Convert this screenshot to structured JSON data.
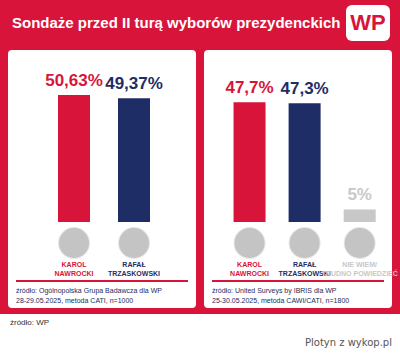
{
  "header": {
    "title": "Sondaże przed II turą wyborów prezydenckich",
    "logo": "WP"
  },
  "chart_data": [
    {
      "type": "bar",
      "categories": [
        "KAROL\nNAWROCKI",
        "RAFAŁ\nTRZASKOWSKI"
      ],
      "values": [
        50.63,
        49.37
      ],
      "value_labels": [
        "50,63%",
        "49,37%"
      ],
      "colors": [
        "#d8143a",
        "#1f2d66"
      ],
      "ylim": [
        0,
        55
      ],
      "grid": false,
      "data_labels": true,
      "tick_labels": "x",
      "source": [
        "źródło: Ogólnopolska Grupa Badawcza dla WP",
        "28-29.05.2025, metoda CATI, n=1000"
      ]
    },
    {
      "type": "bar",
      "categories": [
        "KAROL\nNAWROCKI",
        "RAFAŁ\nTRZASKOWSKI",
        "NIE WIEM/\nTRUDNO POWIEDZIEĆ"
      ],
      "values": [
        47.7,
        47.3,
        5
      ],
      "value_labels": [
        "47,7%",
        "47,3%",
        "5%"
      ],
      "colors": [
        "#d8143a",
        "#1f2d66",
        "#c8c8c8"
      ],
      "ylim": [
        0,
        55
      ],
      "grid": false,
      "data_labels": true,
      "tick_labels": "x",
      "source": [
        "źródło: United Surveys by IBRIS dla WP",
        "25-30.05.2025, metoda CAWI/CATI, n=1800"
      ]
    }
  ],
  "footer": "źródło: WP",
  "watermark": "Plotyn z wykop.pl"
}
